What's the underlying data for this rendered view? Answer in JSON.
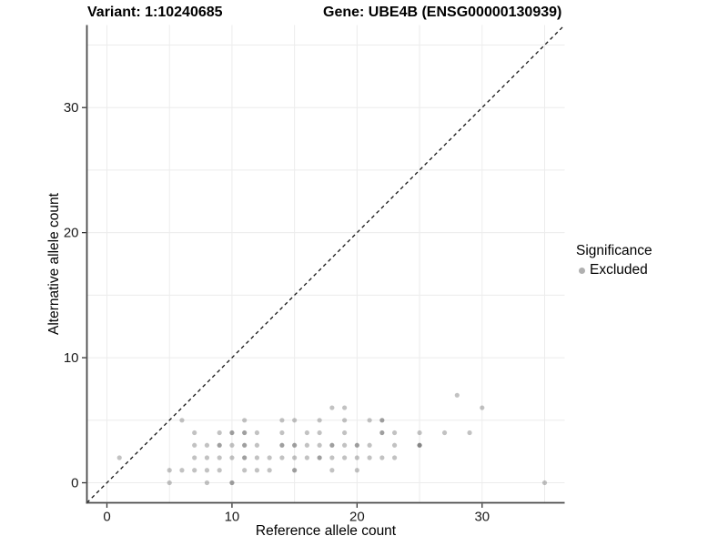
{
  "titles": {
    "left": "Variant: 1:10240685",
    "right": "Gene: UBE4B (ENSG00000130939)"
  },
  "legend": {
    "title": "Significance",
    "items": [
      {
        "label": "Excluded",
        "color": "#b0b0b0"
      }
    ]
  },
  "chart_data": {
    "type": "scatter",
    "title_left": "Variant: 1:10240685",
    "title_right": "Gene: UBE4B (ENSG00000130939)",
    "xlabel": "Reference allele count",
    "ylabel": "Alternative allele count",
    "xlim": [
      -1.6,
      36.6
    ],
    "ylim": [
      -1.6,
      36.6
    ],
    "x_ticks_major": [
      0,
      10,
      20,
      30
    ],
    "x_ticks_minor": [
      5,
      15,
      25,
      35
    ],
    "y_ticks_major": [
      0,
      10,
      20,
      30
    ],
    "y_ticks_minor": [
      5,
      15,
      25,
      35
    ],
    "grid": "on",
    "legend_position": "right",
    "aspect": "equal",
    "reference_line": {
      "type": "identity",
      "equation": "y = x",
      "style": "dashed",
      "color": "#141414"
    },
    "series": [
      {
        "name": "Excluded",
        "color": "#6e6e6e",
        "note": "points are [reference_count, alternative_count, overplot_level]",
        "points": [
          [
            5,
            0,
            1
          ],
          [
            8,
            0,
            1
          ],
          [
            10,
            0,
            2
          ],
          [
            35,
            0,
            1
          ],
          [
            5,
            1,
            1
          ],
          [
            6,
            1,
            1
          ],
          [
            7,
            1,
            1
          ],
          [
            8,
            1,
            1
          ],
          [
            9,
            1,
            1
          ],
          [
            11,
            1,
            1
          ],
          [
            12,
            1,
            1
          ],
          [
            13,
            1,
            1
          ],
          [
            15,
            1,
            2
          ],
          [
            18,
            1,
            1
          ],
          [
            20,
            1,
            1
          ],
          [
            1,
            2,
            1
          ],
          [
            7,
            2,
            1
          ],
          [
            8,
            2,
            1
          ],
          [
            9,
            2,
            1
          ],
          [
            10,
            2,
            1
          ],
          [
            11,
            2,
            2
          ],
          [
            12,
            2,
            1
          ],
          [
            13,
            2,
            1
          ],
          [
            14,
            2,
            1
          ],
          [
            15,
            2,
            1
          ],
          [
            16,
            2,
            1
          ],
          [
            17,
            2,
            2
          ],
          [
            18,
            2,
            1
          ],
          [
            19,
            2,
            1
          ],
          [
            20,
            2,
            1
          ],
          [
            21,
            2,
            1
          ],
          [
            22,
            2,
            1
          ],
          [
            23,
            2,
            1
          ],
          [
            7,
            3,
            1
          ],
          [
            8,
            3,
            1
          ],
          [
            9,
            3,
            2
          ],
          [
            10,
            3,
            1
          ],
          [
            11,
            3,
            2
          ],
          [
            12,
            3,
            1
          ],
          [
            14,
            3,
            2
          ],
          [
            15,
            3,
            2
          ],
          [
            16,
            3,
            1
          ],
          [
            17,
            3,
            1
          ],
          [
            18,
            3,
            2
          ],
          [
            19,
            3,
            1
          ],
          [
            20,
            3,
            2
          ],
          [
            21,
            3,
            1
          ],
          [
            23,
            3,
            1
          ],
          [
            25,
            3,
            3
          ],
          [
            7,
            4,
            1
          ],
          [
            9,
            4,
            1
          ],
          [
            10,
            4,
            2
          ],
          [
            11,
            4,
            2
          ],
          [
            12,
            4,
            1
          ],
          [
            14,
            4,
            1
          ],
          [
            16,
            4,
            1
          ],
          [
            17,
            4,
            1
          ],
          [
            19,
            4,
            1
          ],
          [
            22,
            4,
            2
          ],
          [
            23,
            4,
            1
          ],
          [
            25,
            4,
            1
          ],
          [
            27,
            4,
            1
          ],
          [
            29,
            4,
            1
          ],
          [
            6,
            5,
            1
          ],
          [
            11,
            5,
            1
          ],
          [
            14,
            5,
            1
          ],
          [
            15,
            5,
            1
          ],
          [
            17,
            5,
            1
          ],
          [
            19,
            5,
            1
          ],
          [
            21,
            5,
            1
          ],
          [
            22,
            5,
            2
          ],
          [
            18,
            6,
            1
          ],
          [
            19,
            6,
            1
          ],
          [
            30,
            6,
            1
          ],
          [
            28,
            7,
            1
          ]
        ]
      }
    ]
  },
  "style_colors": {
    "axis_line": "#4a4a4a",
    "tick_mark": "#333333",
    "tick_label": "#1a1a1a",
    "gridline": "#ececec",
    "point_base_rgb": "110,110,110",
    "background": "#ffffff"
  }
}
